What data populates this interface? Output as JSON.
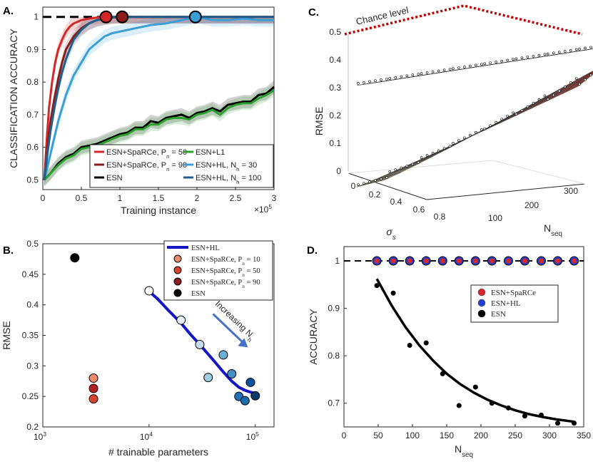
{
  "panels": {
    "a": "A.",
    "b": "B.",
    "c": "C.",
    "d": "D."
  },
  "chart_data": [
    {
      "id": "A",
      "type": "line",
      "xlabel": "Training instance",
      "ylabel": "CLASSIFICATION ACCURACY",
      "x_multiplier": "×10",
      "x_exponent": "5",
      "xlim": [
        0,
        3
      ],
      "ylim": [
        0.47,
        1.03
      ],
      "xticks": [
        "0",
        "0.5",
        "1",
        "1.5",
        "2",
        "2.5",
        "3"
      ],
      "yticks": [
        "0.5",
        "0.6",
        "0.7",
        "0.8",
        "0.9",
        "1"
      ],
      "reference_line": 1.0,
      "legend_position": "bottom-right",
      "series": [
        {
          "name": "ESN+SpaRCe, Pn = 50",
          "label": "ESN+SpaRCe, P",
          "sub": "n",
          "tail": " = 50",
          "color": "#d62728",
          "x": [
            0.02,
            0.05,
            0.08,
            0.12,
            0.16,
            0.2,
            0.25,
            0.3,
            0.35,
            0.4,
            0.45,
            0.5,
            0.6,
            0.7,
            0.8,
            0.85,
            3.0
          ],
          "y": [
            0.5,
            0.62,
            0.72,
            0.8,
            0.86,
            0.9,
            0.93,
            0.955,
            0.97,
            0.98,
            0.985,
            0.99,
            0.995,
            0.998,
            1.0,
            1.0,
            1.0
          ],
          "marker_x": 0.82
        },
        {
          "name": "ESN+SpaRCe, Pn = 90",
          "label": "ESN+SpaRCe, P",
          "sub": "n",
          "tail": " = 90",
          "color": "#8c1d1d",
          "x": [
            0.02,
            0.06,
            0.1,
            0.15,
            0.2,
            0.25,
            0.3,
            0.35,
            0.4,
            0.5,
            0.6,
            0.7,
            0.8,
            0.9,
            1.0,
            3.0
          ],
          "y": [
            0.5,
            0.6,
            0.68,
            0.75,
            0.81,
            0.86,
            0.9,
            0.92,
            0.94,
            0.965,
            0.98,
            0.99,
            0.995,
            0.998,
            1.0,
            1.0
          ],
          "marker_x": 1.03
        },
        {
          "name": "ESN",
          "label": "ESN",
          "sub": "",
          "tail": "",
          "color": "#000000",
          "x": [
            0.02,
            0.1,
            0.2,
            0.3,
            0.4,
            0.5,
            0.6,
            0.7,
            0.8,
            0.9,
            1.0,
            1.1,
            1.2,
            1.3,
            1.4,
            1.5,
            1.6,
            1.7,
            1.8,
            1.9,
            2.0,
            2.1,
            2.2,
            2.3,
            2.4,
            2.5,
            2.6,
            2.7,
            2.8,
            2.9,
            3.0
          ],
          "y": [
            0.5,
            0.52,
            0.55,
            0.57,
            0.58,
            0.6,
            0.605,
            0.61,
            0.62,
            0.63,
            0.64,
            0.645,
            0.66,
            0.66,
            0.68,
            0.675,
            0.69,
            0.695,
            0.7,
            0.69,
            0.705,
            0.71,
            0.72,
            0.71,
            0.73,
            0.735,
            0.74,
            0.74,
            0.76,
            0.765,
            0.785
          ],
          "marker_x": null
        },
        {
          "name": "ESN+L1",
          "label": "ESN+L1",
          "sub": "",
          "tail": "",
          "color": "#2ca02c",
          "x": [
            0.02,
            0.1,
            0.2,
            0.3,
            0.4,
            0.5,
            0.6,
            0.7,
            0.8,
            0.9,
            1.0,
            1.1,
            1.2,
            1.3,
            1.4,
            1.5,
            1.6,
            1.7,
            1.8,
            1.9,
            2.0,
            2.1,
            2.2,
            2.3,
            2.4,
            2.5,
            2.6,
            2.7,
            2.8,
            2.9,
            3.0
          ],
          "y": [
            0.5,
            0.52,
            0.545,
            0.565,
            0.575,
            0.595,
            0.6,
            0.605,
            0.615,
            0.625,
            0.635,
            0.64,
            0.655,
            0.655,
            0.67,
            0.67,
            0.685,
            0.69,
            0.69,
            0.685,
            0.7,
            0.705,
            0.715,
            0.7,
            0.72,
            0.73,
            0.735,
            0.735,
            0.75,
            0.76,
            0.775
          ],
          "marker_x": null
        },
        {
          "name": "ESN+HL, Nh = 30",
          "label": "ESN+HL,  N",
          "sub": "h",
          "tail": " = 30",
          "color": "#3b9fd6",
          "x": [
            0.02,
            0.1,
            0.2,
            0.3,
            0.4,
            0.5,
            0.6,
            0.7,
            0.8,
            0.9,
            1.0,
            1.2,
            1.4,
            1.6,
            1.8,
            2.0,
            2.2,
            2.4,
            2.6,
            2.8,
            3.0
          ],
          "y": [
            0.5,
            0.58,
            0.68,
            0.76,
            0.82,
            0.86,
            0.9,
            0.92,
            0.94,
            0.95,
            0.955,
            0.965,
            0.975,
            0.98,
            0.99,
            1.0,
            0.99,
            0.99,
            0.995,
            0.99,
            0.99
          ],
          "marker_x": 1.98
        },
        {
          "name": "ESN+HL, Nh = 100",
          "label": "ESN+HL,  N",
          "sub": "h",
          "tail": " = 100",
          "color": "#1f5f8b",
          "x": [
            0.02,
            0.06,
            0.1,
            0.15,
            0.2,
            0.25,
            0.3,
            0.35,
            0.4,
            0.5,
            0.6,
            0.7,
            0.8,
            0.9,
            1.0,
            3.0
          ],
          "y": [
            0.5,
            0.58,
            0.65,
            0.72,
            0.78,
            0.83,
            0.87,
            0.9,
            0.93,
            0.96,
            0.98,
            0.99,
            0.995,
            1.0,
            1.0,
            1.0
          ],
          "marker_x": null
        }
      ]
    },
    {
      "id": "B",
      "type": "scatter",
      "xlabel": "# trainable parameters",
      "ylabel": "RMSE",
      "xscale": "log",
      "xlim": [
        1000,
        150000
      ],
      "ylim": [
        0.2,
        0.5
      ],
      "xtick_values": [
        1000,
        10000,
        100000
      ],
      "xtick_exponents": [
        "3",
        "4",
        "5"
      ],
      "xtick_base": "10",
      "yticks": [
        0.2,
        0.25,
        0.3,
        0.35,
        0.4,
        0.45,
        0.5
      ],
      "ytick_labels": [
        "0.2",
        "0.25",
        "0.3",
        "0.35",
        "0.4",
        "0.45",
        "0.5"
      ],
      "legend_position": "top-right",
      "legend": [
        {
          "label": "ESN+HL",
          "sub": "",
          "tail": "",
          "kind": "line",
          "color": "#1515c8"
        },
        {
          "label": "ESN+SpaRCe, P",
          "sub": "n",
          "tail": " = 10",
          "kind": "marker",
          "color": "#ef8a6d"
        },
        {
          "label": "ESN+SpaRCe, P",
          "sub": "n",
          "tail": " = 50",
          "kind": "marker",
          "color": "#d9432b"
        },
        {
          "label": "ESN+SpaRCe, P",
          "sub": "n",
          "tail": " = 90",
          "kind": "marker",
          "color": "#8c1a1a"
        },
        {
          "label": "ESN",
          "sub": "",
          "tail": "",
          "kind": "marker",
          "color": "#000000"
        }
      ],
      "hl_curve": {
        "x": [
          10000,
          12000,
          15000,
          20000,
          25000,
          30000,
          40000,
          50000,
          60000,
          70000,
          80000,
          90000,
          100000
        ],
        "y": [
          0.422,
          0.41,
          0.392,
          0.37,
          0.35,
          0.335,
          0.31,
          0.29,
          0.275,
          0.265,
          0.26,
          0.257,
          0.255
        ],
        "color": "#1515c8"
      },
      "points": [
        {
          "x": 2000,
          "y": 0.477,
          "color": "#000000"
        },
        {
          "x": 3000,
          "y": 0.28,
          "color": "#ef8a6d"
        },
        {
          "x": 3000,
          "y": 0.263,
          "color": "#b22222"
        },
        {
          "x": 3000,
          "y": 0.246,
          "color": "#d9432b"
        },
        {
          "x": 10000,
          "y": 0.423,
          "color": "#ffffff"
        },
        {
          "x": 20000,
          "y": 0.375,
          "color": "#e6f0fa"
        },
        {
          "x": 30000,
          "y": 0.335,
          "color": "#c6dbef"
        },
        {
          "x": 36000,
          "y": 0.281,
          "color": "#9ecae1"
        },
        {
          "x": 50000,
          "y": 0.318,
          "color": "#6baed6"
        },
        {
          "x": 60000,
          "y": 0.287,
          "color": "#4292c6"
        },
        {
          "x": 70000,
          "y": 0.25,
          "color": "#2171b5"
        },
        {
          "x": 80000,
          "y": 0.243,
          "color": "#1c6aa8"
        },
        {
          "x": 90000,
          "y": 0.273,
          "color": "#08519c"
        },
        {
          "x": 100000,
          "y": 0.251,
          "color": "#083b6b"
        }
      ],
      "annotation": {
        "text": "Increasing N",
        "sub": "h",
        "color": "#4472c4"
      }
    },
    {
      "id": "C",
      "type": "surface3d",
      "zlabel": "RMSE",
      "xlabel": "σ",
      "xlabel_sub": "s",
      "ylabel": "N",
      "ylabel_sub": "seq",
      "zticks": [
        "0",
        "0.1",
        "0.2",
        "0.3",
        "0.4",
        "0.5"
      ],
      "xticks": [
        "0",
        "0.2",
        "0.4",
        "0.6",
        "0.8"
      ],
      "yticks": [
        "100",
        "200",
        "300"
      ],
      "chance_label": "Chance level",
      "chance_value": 0.5,
      "upper_surface_range": [
        0.38,
        0.47
      ],
      "lower_surface_range": [
        0.0,
        0.4
      ]
    },
    {
      "id": "D",
      "type": "scatter",
      "xlabel": "N",
      "xlabel_sub": "seq",
      "ylabel": "ACCURACY",
      "xlim": [
        0,
        350
      ],
      "ylim": [
        0.65,
        1.03
      ],
      "xticks": [
        0,
        50,
        100,
        150,
        200,
        250,
        300,
        350
      ],
      "xtick_labels": [
        "0",
        "50",
        "100",
        "150",
        "200",
        "250",
        "300",
        "350"
      ],
      "yticks": [
        0.7,
        0.8,
        0.9,
        1.0
      ],
      "ytick_labels": [
        "0.7",
        "0.8",
        "0.9",
        "1"
      ],
      "reference_line": 1.0,
      "legend_position": "top-right",
      "legend": [
        {
          "label": "ESN+SpaRCe",
          "color": "#d62728"
        },
        {
          "label": "ESN+HL",
          "color": "#1f3fd0"
        },
        {
          "label": "ESN",
          "color": "#000000"
        }
      ],
      "top_points_x": [
        48,
        72,
        96,
        120,
        144,
        168,
        192,
        216,
        240,
        264,
        288,
        312,
        336
      ],
      "esn_points": {
        "x": [
          48,
          72,
          96,
          120,
          144,
          168,
          192,
          216,
          240,
          264,
          288,
          312,
          336
        ],
        "y": [
          0.948,
          0.932,
          0.822,
          0.827,
          0.762,
          0.695,
          0.734,
          0.7,
          0.69,
          0.673,
          0.675,
          0.658,
          0.658
        ]
      },
      "fit_curve": {
        "x": [
          48,
          70,
          90,
          110,
          130,
          150,
          170,
          190,
          210,
          230,
          250,
          270,
          290,
          310,
          336
        ],
        "y": [
          0.962,
          0.905,
          0.86,
          0.822,
          0.79,
          0.762,
          0.74,
          0.722,
          0.707,
          0.695,
          0.685,
          0.677,
          0.671,
          0.666,
          0.661
        ]
      }
    }
  ]
}
